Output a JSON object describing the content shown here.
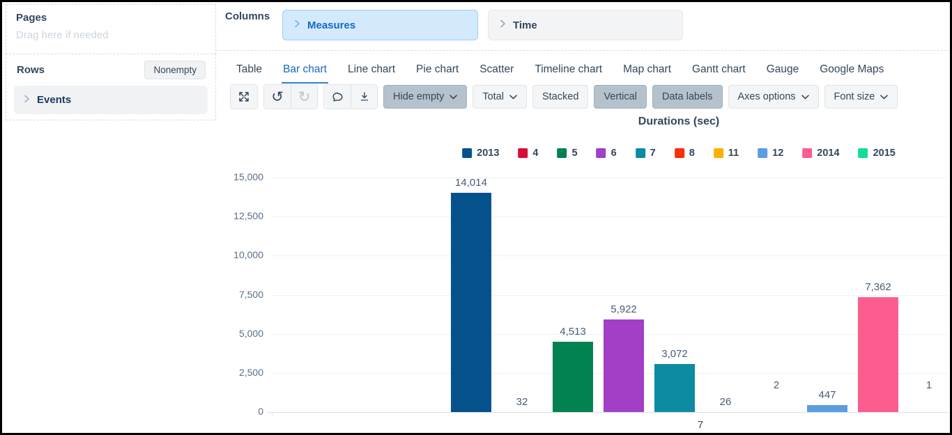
{
  "sidebar": {
    "pages": {
      "title": "Pages",
      "placeholder": "Drag here if needed"
    },
    "rows": {
      "title": "Rows",
      "filter_button_label": "Nonempty",
      "items": [
        {
          "label": "Events"
        }
      ]
    }
  },
  "columns_panel": {
    "label": "Columns",
    "chips": [
      {
        "label": "Measures",
        "active": true
      },
      {
        "label": "Time",
        "active": false
      }
    ]
  },
  "tabs": [
    {
      "label": "Table",
      "active": false
    },
    {
      "label": "Bar chart",
      "active": true
    },
    {
      "label": "Line chart",
      "active": false
    },
    {
      "label": "Pie chart",
      "active": false
    },
    {
      "label": "Scatter",
      "active": false
    },
    {
      "label": "Timeline chart",
      "active": false
    },
    {
      "label": "Map chart",
      "active": false
    },
    {
      "label": "Gantt chart",
      "active": false
    },
    {
      "label": "Gauge",
      "active": false
    },
    {
      "label": "Google Maps",
      "active": false
    }
  ],
  "toolbar": {
    "icon_groups": [
      [
        {
          "name": "fullscreen-icon",
          "disabled": false
        }
      ],
      [
        {
          "name": "undo-icon",
          "disabled": false
        },
        {
          "name": "redo-icon",
          "disabled": true
        }
      ],
      [
        {
          "name": "comment-icon",
          "disabled": false
        },
        {
          "name": "download-icon",
          "disabled": false
        }
      ]
    ],
    "buttons": [
      {
        "label": "Hide empty",
        "dropdown": true,
        "active": true
      },
      {
        "label": "Total",
        "dropdown": true,
        "active": false
      },
      {
        "label": "Stacked",
        "dropdown": false,
        "active": false
      },
      {
        "label": "Vertical",
        "dropdown": false,
        "active": true
      },
      {
        "label": "Data labels",
        "dropdown": false,
        "active": true
      },
      {
        "label": "Axes options",
        "dropdown": true,
        "active": false
      },
      {
        "label": "Font size",
        "dropdown": true,
        "active": false
      }
    ]
  },
  "chart_data": {
    "type": "bar",
    "title": "Durations (sec)",
    "categories": [
      "7"
    ],
    "series": [
      {
        "name": "2013",
        "value": 14014,
        "label": "14,014",
        "color": "#04518c"
      },
      {
        "name": "4",
        "value": 32,
        "label": "32",
        "color": "#d50f38"
      },
      {
        "name": "5",
        "value": 4513,
        "label": "4,513",
        "color": "#028250"
      },
      {
        "name": "6",
        "value": 5922,
        "label": "5,922",
        "color": "#a23fc6"
      },
      {
        "name": "7",
        "value": 3072,
        "label": "3,072",
        "color": "#0d8ba3"
      },
      {
        "name": "8",
        "value": 26,
        "label": "26",
        "color": "#fb2e01"
      },
      {
        "name": "11",
        "value": 2,
        "label": "2",
        "color": "#fcb001"
      },
      {
        "name": "12",
        "value": 447,
        "label": "447",
        "color": "#5b9de0"
      },
      {
        "name": "2014",
        "value": 7362,
        "label": "7,362",
        "color": "#fb5d8f"
      },
      {
        "name": "2015",
        "value": 1,
        "label": "1",
        "color": "#12dc96"
      }
    ],
    "ylim": [
      0,
      15000
    ],
    "y_tick_values": [
      0,
      2500,
      5000,
      7500,
      10000,
      12500,
      15000
    ],
    "y_tick_labels": [
      "0",
      "2,500",
      "5,000",
      "7,500",
      "10,000",
      "12,500",
      "15,000"
    ],
    "grid": true,
    "legend_position": "top",
    "xlabel": "",
    "ylabel": ""
  }
}
